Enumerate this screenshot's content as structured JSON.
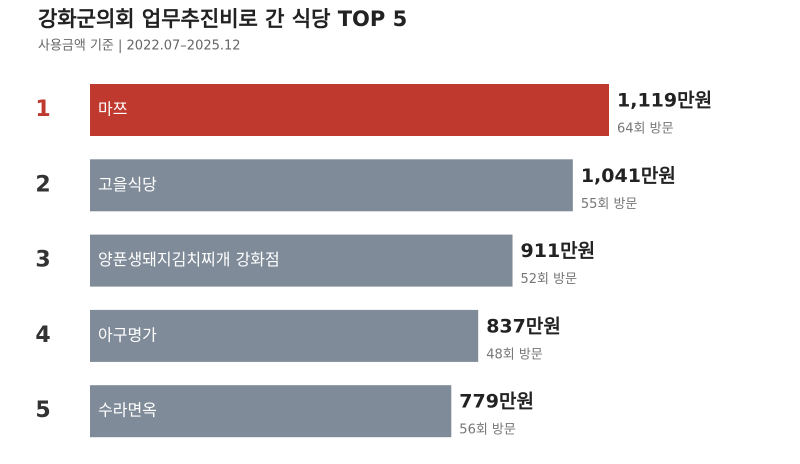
{
  "chart_data": {
    "type": "hbar",
    "title": "강화군의회 업무추진비로 간 식당 TOP 5",
    "subtitle": "사용금액 기준 | 2022.07–2025.12",
    "ranks": [
      "1",
      "2",
      "3",
      "4",
      "5"
    ],
    "categories": [
      "마쯔",
      "고을식당",
      "양푼생돼지김치찌개 강화점",
      "아구명가",
      "수라면옥"
    ],
    "series": [
      {
        "values": [
          1119,
          1041,
          911,
          837,
          779
        ],
        "value_labels": [
          "1,119만원",
          "1,041만원",
          "911만원",
          "837만원",
          "779만원"
        ],
        "colors": [
          "#c0392f",
          "#7f8b98",
          "#7f8b98",
          "#7f8b98",
          "#7f8b98"
        ]
      }
    ],
    "visits": [
      "64회 방문",
      "55회 방문",
      "52회 방문",
      "48회 방문",
      "56회 방문"
    ],
    "rank_colors": [
      "#c0392f",
      "#333333",
      "#333333",
      "#333333",
      "#333333"
    ]
  }
}
